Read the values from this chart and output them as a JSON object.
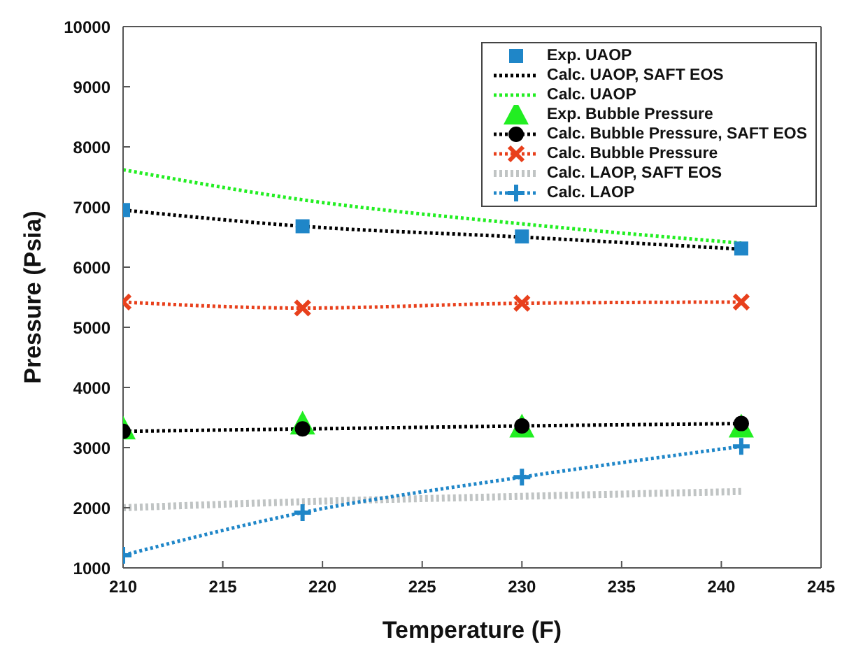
{
  "chart_data": {
    "type": "line",
    "xlabel": "Temperature (F)",
    "ylabel": "Pressure (Psia)",
    "x": [
      210,
      219,
      230,
      241
    ],
    "xlim": [
      210,
      245
    ],
    "xticks": [
      210,
      215,
      220,
      225,
      230,
      235,
      240,
      245
    ],
    "ylim": [
      1000,
      10000
    ],
    "yticks": [
      1000,
      2000,
      3000,
      4000,
      5000,
      6000,
      7000,
      8000,
      9000,
      10000
    ],
    "legend": "top right",
    "series": [
      {
        "name": "Exp.  UAOP",
        "type": "scatter",
        "color": "#1f86c8",
        "marker": "square",
        "values": [
          6950,
          6680,
          6510,
          6310
        ]
      },
      {
        "name": "Calc. UAOP, SAFT EOS",
        "color": "#000000",
        "marker": "none",
        "line_style": "dotted",
        "values": [
          6950,
          6680,
          6500,
          6300
        ]
      },
      {
        "name": "Calc. UAOP",
        "color": "#22ee22",
        "marker": "none",
        "line_style": "dotted",
        "values": [
          7620,
          7120,
          6720,
          6400
        ]
      },
      {
        "name": "Exp.  Bubble Pressure",
        "type": "scatter",
        "color": "#22ee22",
        "marker": "triangle",
        "values": [
          3300,
          3380,
          3330,
          3330
        ]
      },
      {
        "name": "Calc. Bubble Pressure, SAFT EOS",
        "color": "#000000",
        "marker": "circle",
        "line_style": "dotted",
        "values": [
          3270,
          3310,
          3360,
          3400
        ]
      },
      {
        "name": "Calc. Bubble Pressure",
        "color": "#e8401c",
        "marker": "x",
        "line_style": "dotted",
        "values": [
          5420,
          5320,
          5400,
          5420
        ]
      },
      {
        "name": "Calc. LAOP, SAFT EOS",
        "color": "#c0c4c4",
        "marker": "none",
        "line_style": "dotted",
        "values": [
          2000,
          2100,
          2190,
          2270
        ]
      },
      {
        "name": "Calc. LAOP",
        "color": "#1f86c8",
        "marker": "cross",
        "line_style": "dotted",
        "values": [
          1210,
          1920,
          2510,
          3020
        ]
      }
    ]
  }
}
